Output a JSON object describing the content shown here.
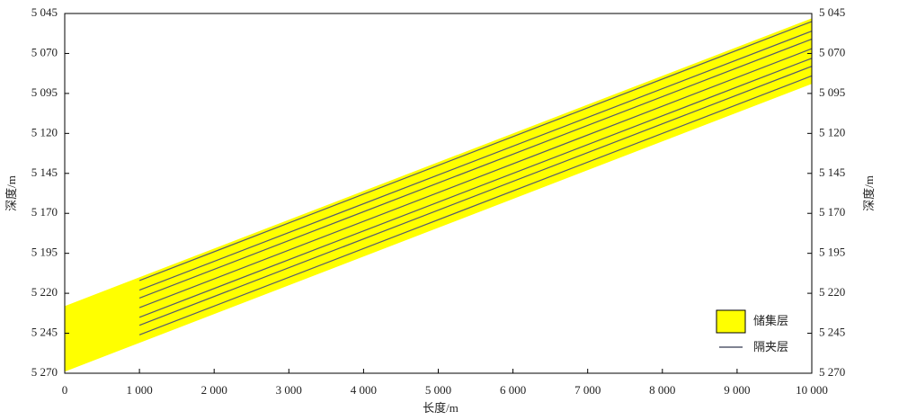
{
  "chart_data": {
    "type": "band",
    "x_label": "长度/m",
    "y_label": "深度/m",
    "y2_label": "深度/m",
    "xlim": [
      0,
      10000
    ],
    "xticks": [
      0,
      {
        "value": 1000,
        "label": "1 000"
      },
      {
        "value": 2000,
        "label": "2 000"
      },
      {
        "value": 3000,
        "label": "3 000"
      },
      {
        "value": 4000,
        "label": "4 000"
      },
      {
        "value": 5000,
        "label": "5 000"
      },
      {
        "value": 6000,
        "label": "6 000"
      },
      {
        "value": 7000,
        "label": "7 000"
      },
      {
        "value": 8000,
        "label": "8 000"
      },
      {
        "value": 9000,
        "label": "9 000"
      },
      {
        "value": 10000,
        "label": "10 000"
      }
    ],
    "ylim": [
      5270,
      5045
    ],
    "inverted_y": true,
    "yticks": [
      {
        "value": 5045,
        "label": "5 045"
      },
      {
        "value": 5070,
        "label": "5 070"
      },
      {
        "value": 5095,
        "label": "5 095"
      },
      {
        "value": 5120,
        "label": "5 120"
      },
      {
        "value": 5145,
        "label": "5 145"
      },
      {
        "value": 5170,
        "label": "5 170"
      },
      {
        "value": 5195,
        "label": "5 195"
      },
      {
        "value": 5220,
        "label": "5 220"
      },
      {
        "value": 5245,
        "label": "5 245"
      },
      {
        "value": 5270,
        "label": "5 270"
      }
    ],
    "reservoir": {
      "name": "储集层",
      "color": "#ffff00",
      "x": [
        0,
        10000
      ],
      "top": [
        5228,
        5048
      ],
      "bottom": [
        5269,
        5089
      ]
    },
    "interlayers": {
      "name": "隔夹层",
      "color": "#555a6e",
      "x": [
        1000,
        10000
      ],
      "lines": [
        [
          5212,
          5050
        ],
        [
          5218,
          5056
        ],
        [
          5223,
          5061
        ],
        [
          5229,
          5067
        ],
        [
          5235,
          5073
        ],
        [
          5240,
          5078
        ],
        [
          5246,
          5084
        ]
      ]
    }
  }
}
